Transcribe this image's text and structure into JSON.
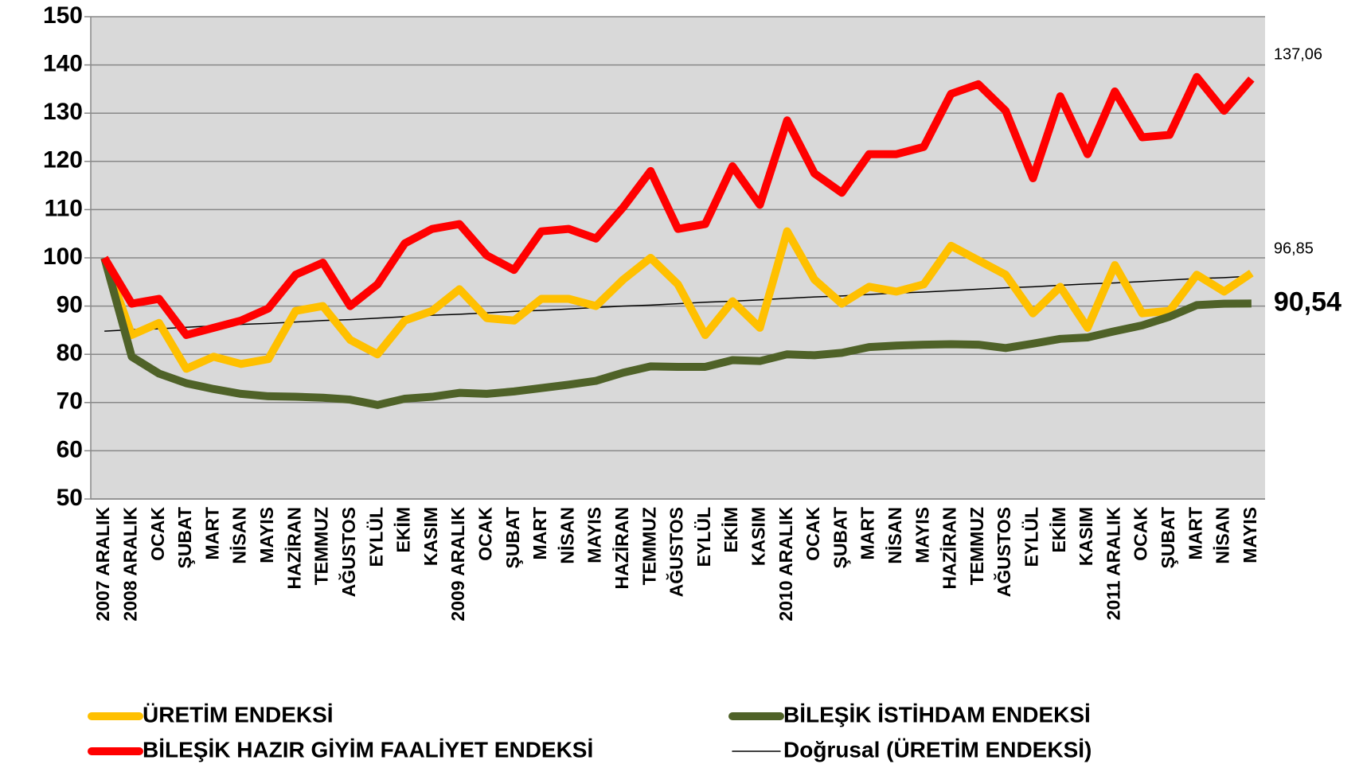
{
  "chart_data": {
    "type": "line",
    "categories": [
      "2007 ARALIK",
      "2008 ARALIK",
      "OCAK",
      "ŞUBAT",
      "MART",
      "NİSAN",
      "MAYIS",
      "HAZİRAN",
      "TEMMUZ",
      "AĞUSTOS",
      "EYLÜL",
      "EKİM",
      "KASIM",
      "2009 ARALIK",
      "OCAK",
      "ŞUBAT",
      "MART",
      "NİSAN",
      "MAYIS",
      "HAZİRAN",
      "TEMMUZ",
      "AĞUSTOS",
      "EYLÜL",
      "EKİM",
      "KASIM",
      "2010 ARALIK",
      "OCAK",
      "ŞUBAT",
      "MART",
      "NİSAN",
      "MAYIS",
      "HAZİRAN",
      "TEMMUZ",
      "AĞUSTOS",
      "EYLÜL",
      "EKİM",
      "KASIM",
      "2011 ARALIK",
      "OCAK",
      "ŞUBAT",
      "MART",
      "NİSAN",
      "MAYIS"
    ],
    "series": [
      {
        "name": "ÜRETİM ENDEKSİ",
        "color": "#ffc000",
        "width": 10,
        "values": [
          100,
          84,
          86.5,
          77,
          79.5,
          78,
          79,
          89,
          90,
          83,
          80,
          87,
          89,
          93.5,
          87.5,
          87,
          91.5,
          91.5,
          90,
          95.5,
          100,
          94.5,
          84,
          91,
          85.5,
          105.5,
          95.5,
          90.5,
          94,
          93,
          94.5,
          102.5,
          99.5,
          96.5,
          88.5,
          94,
          85.5,
          98.5,
          88.5,
          89,
          96.5,
          93,
          96.85
        ],
        "value_labels": {
          "42": "96,85"
        }
      },
      {
        "name": "BİLEŞİK İSTİHDAM ENDEKSİ",
        "color": "#4f6228",
        "width": 10,
        "values": [
          100,
          79.5,
          76,
          74,
          72.8,
          71.8,
          71.3,
          71.2,
          71,
          70.6,
          69.5,
          70.8,
          71.2,
          72,
          71.8,
          72.3,
          73,
          73.7,
          74.5,
          76.2,
          77.5,
          77.4,
          77.4,
          78.8,
          78.6,
          80,
          79.8,
          80.3,
          81.5,
          81.8,
          82,
          82.1,
          82,
          81.3,
          82.2,
          83.2,
          83.5,
          84.8,
          86,
          87.8,
          90.2,
          90.5,
          90.54
        ],
        "value_labels": {
          "42": "90,54"
        }
      },
      {
        "name": "BİLEŞİK HAZIR GİYİM FAALİYET ENDEKSİ",
        "color": "#ff0000",
        "width": 10,
        "values": [
          100,
          90.5,
          91.5,
          84,
          85.5,
          87,
          89.5,
          96.5,
          99,
          90,
          94.5,
          103,
          106,
          107,
          100.5,
          97.5,
          105.5,
          106,
          104,
          110.5,
          118,
          106,
          107,
          119,
          111,
          128.5,
          117.5,
          113.5,
          121.5,
          121.5,
          123,
          134,
          136,
          130.5,
          116.5,
          133.5,
          121.5,
          134.5,
          125,
          125.5,
          137.5,
          130.5,
          137.06
        ],
        "value_labels": {
          "42": "137,06"
        }
      },
      {
        "name": "Doğrusal (ÜRETİM ENDEKSİ)",
        "color": "#000000",
        "width": 1.5,
        "values": [
          84.8,
          85.1,
          85.3,
          85.6,
          85.9,
          86.2,
          86.4,
          86.7,
          87.0,
          87.2,
          87.5,
          87.8,
          88.1,
          88.3,
          88.6,
          88.9,
          89.1,
          89.4,
          89.7,
          90.0,
          90.2,
          90.5,
          90.8,
          91.0,
          91.3,
          91.6,
          91.9,
          92.1,
          92.4,
          92.7,
          92.9,
          93.2,
          93.5,
          93.8,
          94.0,
          94.3,
          94.6,
          94.8,
          95.1,
          95.4,
          95.7,
          95.9,
          96.2
        ]
      }
    ],
    "ylim": [
      50,
      150
    ],
    "yticks": [
      50,
      60,
      70,
      80,
      90,
      100,
      110,
      120,
      130,
      140,
      150
    ],
    "grid": true
  }
}
